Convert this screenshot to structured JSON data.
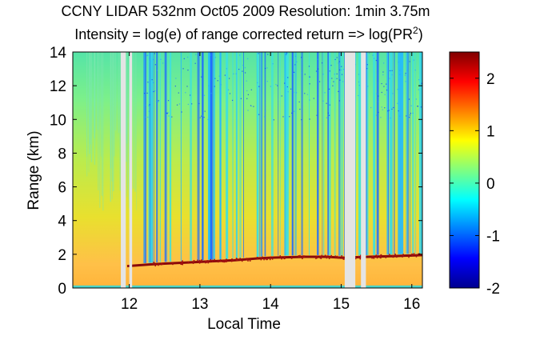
{
  "chart_data": {
    "type": "heatmap",
    "title": "CCNY LIDAR 532nm Oct05 2009 Resolution: 1min 3.75m",
    "subtitle_main": "Intensity = log(e) of range corrected return => log(PR",
    "subtitle_sup": "2",
    "subtitle_end": ")",
    "xlabel": "Local Time",
    "ylabel": "Range (km)",
    "xlim": [
      11.2,
      16.15
    ],
    "ylim": [
      0,
      14
    ],
    "xticks": [
      12,
      13,
      14,
      15,
      16
    ],
    "yticks": [
      0,
      2,
      4,
      6,
      8,
      10,
      12,
      14
    ],
    "colorbar": {
      "colormap": "jet",
      "clim": [
        -2,
        2.5
      ],
      "ticks": [
        -2,
        -1,
        0,
        1,
        2
      ]
    },
    "data_gaps": [
      [
        11.88,
        11.95
      ],
      [
        12.0,
        12.04
      ],
      [
        15.05,
        15.2
      ],
      [
        15.28,
        15.35
      ]
    ],
    "cloud_base": [
      {
        "t": 11.97,
        "range_km": 1.3
      },
      {
        "t": 12.3,
        "range_km": 1.4
      },
      {
        "t": 12.5,
        "range_km": 1.45
      },
      {
        "t": 13.0,
        "range_km": 1.55
      },
      {
        "t": 13.5,
        "range_km": 1.65
      },
      {
        "t": 13.8,
        "range_km": 1.75
      },
      {
        "t": 14.0,
        "range_km": 1.8
      },
      {
        "t": 14.5,
        "range_km": 1.85
      },
      {
        "t": 14.8,
        "range_km": 1.85
      },
      {
        "t": 15.0,
        "range_km": 1.8
      },
      {
        "t": 15.4,
        "range_km": 1.85
      },
      {
        "t": 15.8,
        "range_km": 1.9
      },
      {
        "t": 16.15,
        "range_km": 1.95
      }
    ]
  }
}
